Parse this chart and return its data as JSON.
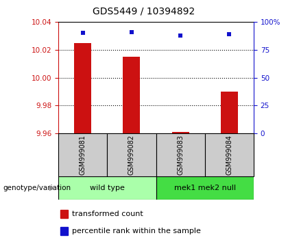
{
  "title": "GDS5449 / 10394892",
  "samples": [
    "GSM999081",
    "GSM999082",
    "GSM999083",
    "GSM999084"
  ],
  "bar_values": [
    10.025,
    10.015,
    9.961,
    9.99
  ],
  "percentile_values": [
    90,
    91,
    88,
    89
  ],
  "ylim_left": [
    9.96,
    10.04
  ],
  "ylim_right": [
    0,
    100
  ],
  "yticks_left": [
    9.96,
    9.98,
    10.0,
    10.02,
    10.04
  ],
  "yticks_right": [
    0,
    25,
    50,
    75,
    100
  ],
  "bar_color": "#cc1111",
  "scatter_color": "#1111cc",
  "groups": [
    {
      "label": "wild type",
      "samples": [
        0,
        1
      ],
      "color": "#aaffaa"
    },
    {
      "label": "mek1 mek2 null",
      "samples": [
        2,
        3
      ],
      "color": "#44dd44"
    }
  ],
  "group_label_prefix": "genotype/variation",
  "legend_items": [
    {
      "color": "#cc1111",
      "label": "transformed count"
    },
    {
      "color": "#1111cc",
      "label": "percentile rank within the sample"
    }
  ],
  "bar_width": 0.35,
  "sample_area_color": "#cccccc",
  "title_fontsize": 10,
  "tick_fontsize": 7.5,
  "axis_label_fontsize": 7.5,
  "legend_fontsize": 8,
  "group_label_fontsize": 8
}
